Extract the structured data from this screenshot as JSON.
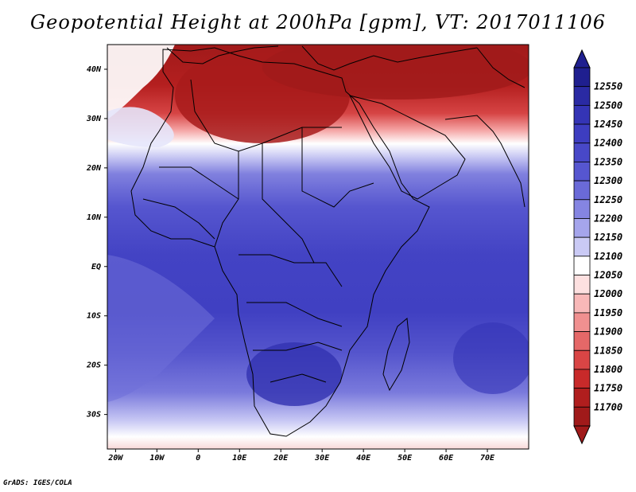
{
  "title": "Geopotential Height at 200hPa [gpm], VT: 2017011106",
  "credit": "GrADS: IGES/COLA",
  "map": {
    "lon_range": [
      -22,
      80
    ],
    "lat_range": [
      -37,
      45
    ],
    "x_ticks": [
      {
        "lon": -20,
        "label": "20W"
      },
      {
        "lon": -10,
        "label": "10W"
      },
      {
        "lon": 0,
        "label": "0"
      },
      {
        "lon": 10,
        "label": "10E"
      },
      {
        "lon": 20,
        "label": "20E"
      },
      {
        "lon": 30,
        "label": "30E"
      },
      {
        "lon": 40,
        "label": "40E"
      },
      {
        "lon": 50,
        "label": "50E"
      },
      {
        "lon": 60,
        "label": "60E"
      },
      {
        "lon": 70,
        "label": "70E"
      }
    ],
    "y_ticks": [
      {
        "lat": 40,
        "label": "40N"
      },
      {
        "lat": 30,
        "label": "30N"
      },
      {
        "lat": 20,
        "label": "20N"
      },
      {
        "lat": 10,
        "label": "10N"
      },
      {
        "lat": 0,
        "label": "EQ"
      },
      {
        "lat": -10,
        "label": "10S"
      },
      {
        "lat": -20,
        "label": "20S"
      },
      {
        "lat": -30,
        "label": "30S"
      }
    ]
  },
  "colorbar": {
    "levels": [
      "12550",
      "12500",
      "12450",
      "12400",
      "12350",
      "12300",
      "12250",
      "12200",
      "12150",
      "12100",
      "12050",
      "12000",
      "11950",
      "11900",
      "11850",
      "11800",
      "11750",
      "11700"
    ],
    "colors": [
      "#1f1f8f",
      "#2a2aa3",
      "#3434b5",
      "#3d3dc0",
      "#4848c8",
      "#5656d0",
      "#6a6ad8",
      "#8585e2",
      "#a5a5ec",
      "#cacaf5",
      "#ffffff",
      "#fde0e0",
      "#f8b8b8",
      "#f09090",
      "#e56868",
      "#d94545",
      "#c82a2a",
      "#b01e1e",
      "#a01a1a"
    ]
  }
}
